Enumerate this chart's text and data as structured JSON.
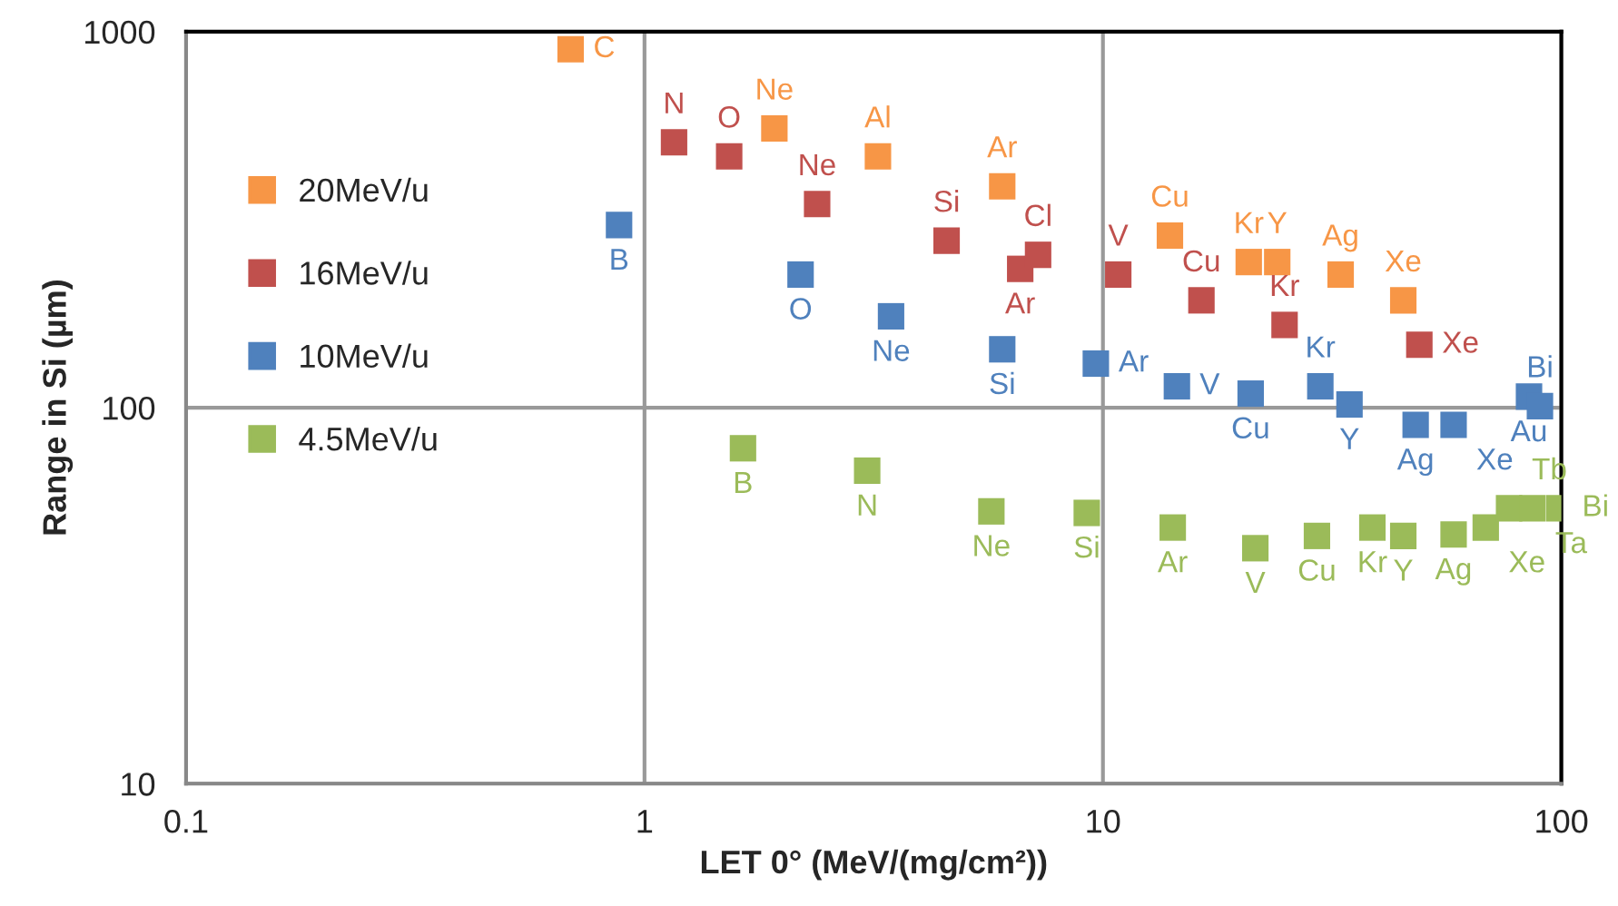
{
  "chart_data": {
    "type": "scatter",
    "xlabel": "LET 0° (MeV/(mg/cm²))",
    "ylabel": "Range in Si (µm)",
    "log": "xy",
    "xlim": [
      0.1,
      100
    ],
    "ylim": [
      10,
      1000
    ],
    "xticks": [
      0.1,
      1,
      10,
      100
    ],
    "yticks": [
      10,
      100,
      1000
    ],
    "grid": true,
    "legend": "left",
    "marker": "square",
    "series": [
      {
        "name": "20MeV/u",
        "color": "#f79646",
        "x": [
          0.69,
          1.92,
          3.23,
          6.03,
          14.0,
          20.8,
          24.0,
          33.0,
          45.2
        ],
        "values": [
          898,
          553,
          466,
          388,
          287,
          244,
          244,
          226,
          193
        ],
        "value_labels": [
          "C",
          "Ne",
          "Al",
          "Ar",
          "Cu",
          "Kr",
          "Y",
          "Ag",
          "Xe"
        ]
      },
      {
        "name": "16MeV/u",
        "color": "#c0504d",
        "x": [
          1.16,
          1.53,
          2.38,
          4.56,
          6.6,
          7.22,
          10.8,
          16.4,
          24.9,
          49.0
        ],
        "values": [
          508,
          466,
          348,
          278,
          234,
          255,
          226,
          193,
          166,
          147
        ],
        "value_labels": [
          "N",
          "O",
          "Ne",
          "Si",
          "Ar",
          "Cl",
          "V",
          "Cu",
          "Kr",
          "Xe"
        ]
      },
      {
        "name": "10MeV/u",
        "color": "#4f81bd",
        "x": [
          0.88,
          2.19,
          3.45,
          6.03,
          9.65,
          14.5,
          21.0,
          29.8,
          34.5,
          48.1,
          58.2,
          85,
          89.8
        ],
        "values": [
          306,
          226,
          175,
          143,
          131,
          114,
          109,
          114,
          102,
          90,
          90,
          107,
          101
        ],
        "value_labels": [
          "B",
          "O",
          "Ne",
          "Si",
          "Ar",
          "V",
          "Cu",
          "Kr",
          "Y",
          "Ag",
          "Xe",
          "Au",
          "Bi"
        ]
      },
      {
        "name": "4.5MeV/u",
        "color": "#9bbb59",
        "x": [
          1.64,
          3.06,
          5.71,
          9.22,
          14.2,
          21.5,
          29.3,
          38.7,
          45.2,
          58.2,
          68.4,
          76.9,
          86.5,
          99
        ],
        "values": [
          78,
          68,
          53,
          52.5,
          48,
          42.3,
          45.6,
          48,
          45.6,
          46,
          48,
          54,
          54,
          54
        ],
        "value_labels": [
          "B",
          "N",
          "Ne",
          "Si",
          "Ar",
          "V",
          "Cu",
          "Kr",
          "Y",
          "Ag",
          "Xe",
          "Tb",
          "Ta",
          "Bi"
        ]
      }
    ]
  }
}
